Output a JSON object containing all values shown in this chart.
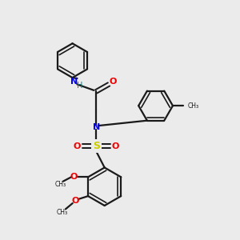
{
  "bg_color": "#ebebeb",
  "bond_color": "#1a1a1a",
  "N_color": "#0000ee",
  "O_color": "#ee0000",
  "S_color": "#cccc00",
  "figsize": [
    3.0,
    3.0
  ],
  "dpi": 100,
  "xlim": [
    0,
    10
  ],
  "ylim": [
    0,
    10
  ]
}
